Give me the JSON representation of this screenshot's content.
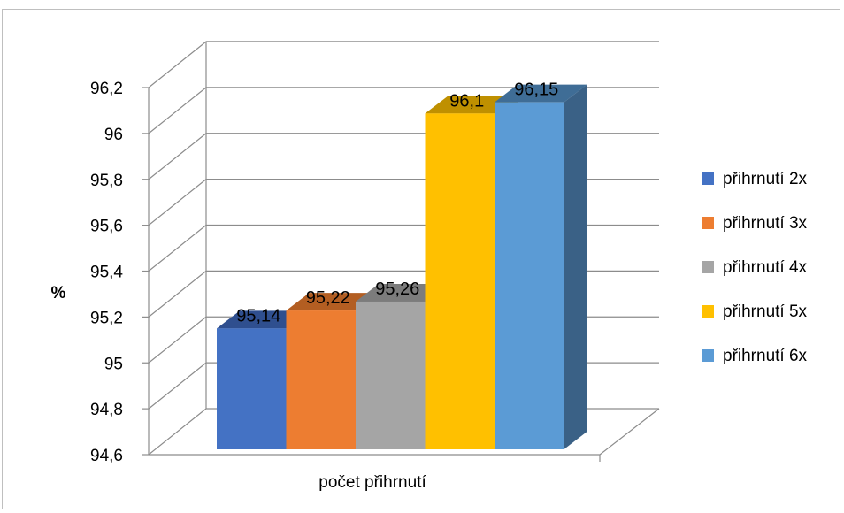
{
  "chart_data": {
    "type": "bar",
    "style": "3d-clustered-column",
    "xlabel": "počet přihrnutí",
    "ylabel": "%",
    "ylim": [
      94.6,
      96.2
    ],
    "yticks": [
      "94,6",
      "94,8",
      "95",
      "95,2",
      "95,4",
      "95,6",
      "95,8",
      "96",
      "96,2"
    ],
    "grid": true,
    "legend_position": "right",
    "series": [
      {
        "name": "přihrnutí 2x",
        "value": 95.14,
        "label": "95,14",
        "color": "#4472C4",
        "side": "#2E4F8A",
        "top": "#2F4F8F"
      },
      {
        "name": "přihrnutí 3x",
        "value": 95.22,
        "label": "95,22",
        "color": "#ED7D31",
        "side": "#A8571F",
        "top": "#B35E22"
      },
      {
        "name": "přihrnutí 4x",
        "value": 95.26,
        "label": "95,26",
        "color": "#A5A5A5",
        "side": "#757575",
        "top": "#7C7C7C"
      },
      {
        "name": "přihrnutí 5x",
        "value": 96.1,
        "label": "96,1",
        "color": "#FFC000",
        "side": "#B98A00",
        "top": "#BF9000"
      },
      {
        "name": "přihrnutí 6x",
        "value": 96.15,
        "label": "96,15",
        "color": "#5B9BD5",
        "side": "#3A6186",
        "top": "#3F6D96"
      }
    ]
  }
}
